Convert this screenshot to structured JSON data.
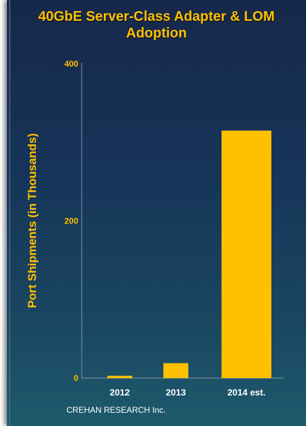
{
  "chart_data": {
    "type": "bar",
    "title": "40GbE Server-Class Adapter & LOM Adoption",
    "ylabel": "Port Shipments (in Thousands)",
    "xlabel": "",
    "categories": [
      "2012",
      "2013",
      "2014 est."
    ],
    "values": [
      3,
      19,
      315
    ],
    "ylim": [
      0,
      400
    ],
    "yticks": [
      0,
      200,
      400
    ],
    "grid": false,
    "legend": "none"
  },
  "footer": {
    "source": "CREHAN RESEARCH Inc."
  },
  "colors": {
    "bar": "#ffc000",
    "title": "#ffc000",
    "axis_text": "#ffc000",
    "category_text": "#ffffff",
    "background_top": "#16284a",
    "background_bottom": "#1d5a6c"
  }
}
